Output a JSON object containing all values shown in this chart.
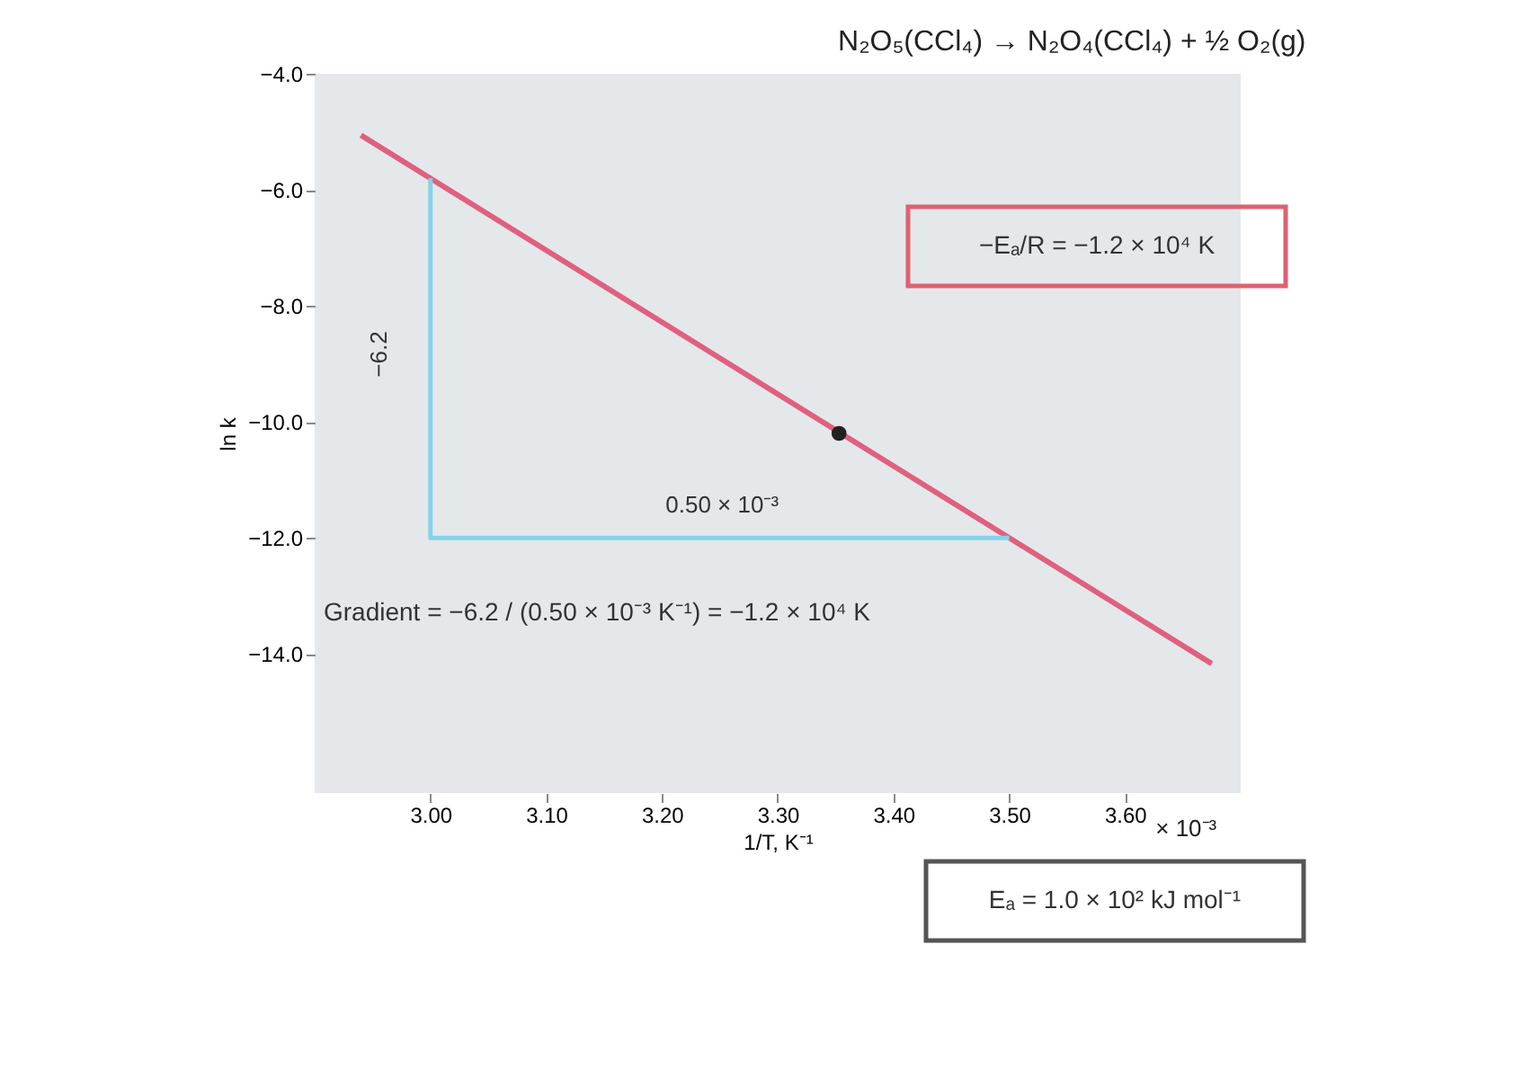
{
  "chart_data": {
    "type": "line",
    "title": "N₂O₅(CCl₄) → N₂O₄(CCl₄) + ½ O₂(g)",
    "xlabel": "1/T, K⁻¹",
    "ylabel": "ln k",
    "series": [
      {
        "type": "line",
        "color": "#e0607e",
        "x": [
          2.94,
          3.675
        ],
        "values": [
          -5.06,
          -14.17
        ]
      },
      {
        "type": "line",
        "color": "#86d2e8",
        "x": [
          3.0,
          3.0,
          3.5
        ],
        "values": [
          -5.8,
          -12.0,
          -12.0
        ]
      },
      {
        "type": "scatter",
        "color": "#222222",
        "x": [
          3.353
        ],
        "values": [
          -10.2
        ]
      }
    ],
    "xlim": [
      2.9,
      3.7
    ],
    "xticks": [
      {
        "value": 3.0,
        "label": "3.00"
      },
      {
        "value": 3.1,
        "label": "3.10"
      },
      {
        "value": 3.2,
        "label": "3.20"
      },
      {
        "value": 3.3,
        "label": "3.30"
      },
      {
        "value": 3.4,
        "label": "3.40"
      },
      {
        "value": 3.5,
        "label": "3.50"
      },
      {
        "value": 3.6,
        "label": "3.60"
      }
    ],
    "ylim": [
      -16.4,
      -4.0
    ],
    "yticks": [
      {
        "value": -4,
        "label": "−4.0"
      },
      {
        "value": -6,
        "label": "−6.0"
      },
      {
        "value": -8,
        "label": "−8.0"
      },
      {
        "value": -10,
        "label": "−10.0"
      },
      {
        "value": -12,
        "label": "−12.0"
      },
      {
        "value": -14,
        "label": "−14.0"
      }
    ],
    "grid": false,
    "annotations": [
      "−6.2",
      "0.50 × 10⁻³",
      "× 10⁻³",
      "Gradient = −6.2 / (0.50 × 10⁻³ K⁻¹) = −1.2 × 10⁴ K",
      "−Eₐ/R = −1.2 × 10⁴ K",
      "Eₐ = 1.0 × 10² kJ mol⁻¹"
    ]
  }
}
